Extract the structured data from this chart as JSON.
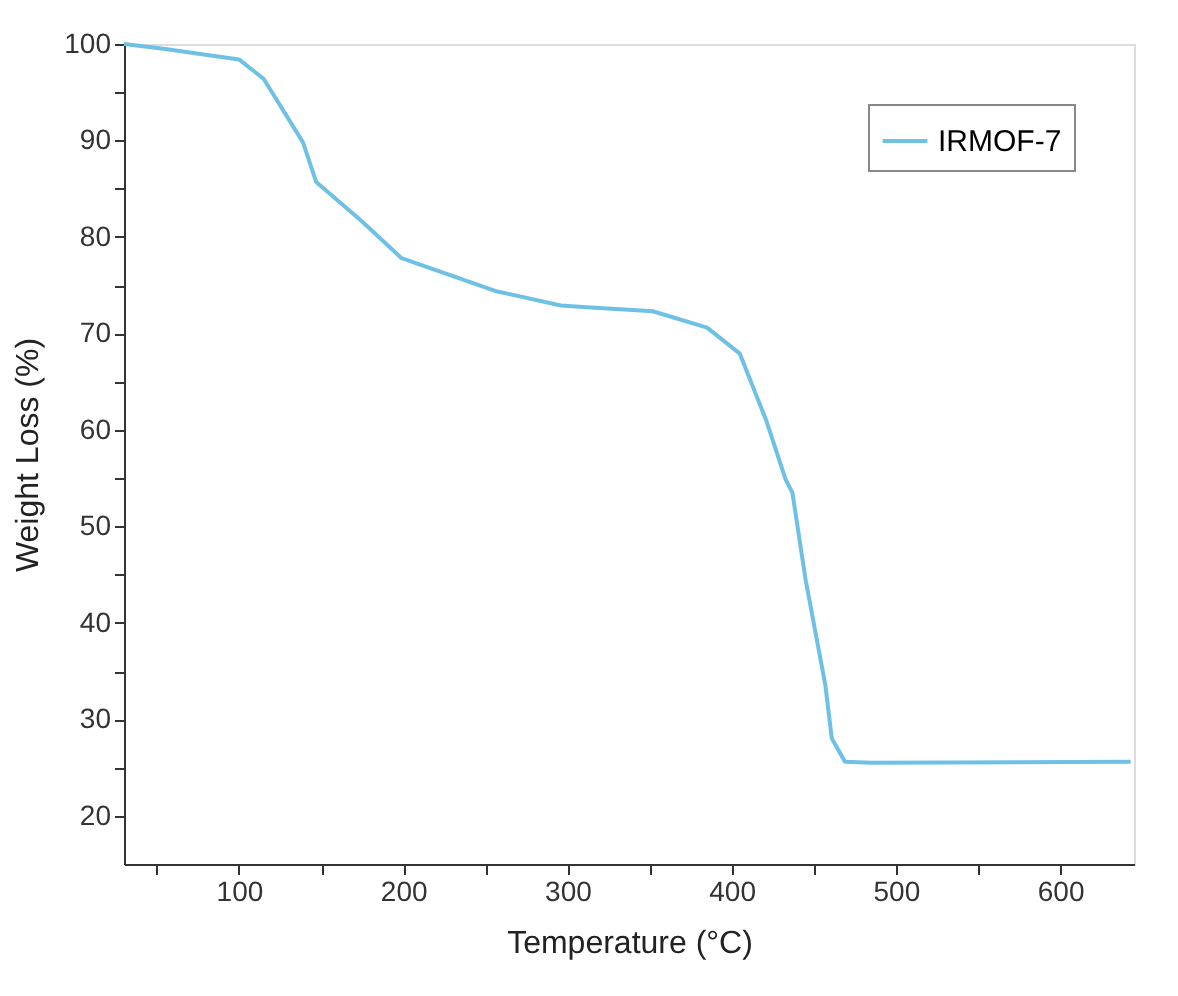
{
  "chart_data": {
    "type": "line",
    "xlabel": "Temperature (°C)",
    "ylabel": "Weight Loss (%)",
    "x": [
      30,
      54,
      100,
      115,
      139,
      147,
      175,
      199,
      256,
      296,
      312,
      352,
      385,
      405,
      421,
      433,
      437,
      445,
      457,
      461,
      469,
      485,
      643
    ],
    "series": [
      {
        "name": "IRMOF-7",
        "color": "#6ec1e4",
        "values": [
          100,
          99.5,
          98.4,
          96.4,
          89.8,
          85.7,
          81.6,
          77.8,
          74.4,
          72.9,
          72.7,
          72.3,
          70.6,
          67.9,
          61,
          54.8,
          53.5,
          44.5,
          33.6,
          28,
          25.6,
          25.5,
          25.6
        ]
      }
    ],
    "xlim": [
      30,
      645
    ],
    "ylim": [
      15,
      100
    ],
    "xticks": [
      {
        "value": 50,
        "label": null
      },
      100,
      {
        "value": 150,
        "label": null
      },
      200,
      {
        "value": 250,
        "label": null
      },
      300,
      {
        "value": 350,
        "label": null
      },
      400,
      {
        "value": 450,
        "label": null
      },
      500,
      {
        "value": 550,
        "label": null
      },
      600
    ],
    "yticks": [
      20,
      {
        "value": 25,
        "label": null
      },
      30,
      {
        "value": 35,
        "label": null
      },
      40,
      {
        "value": 45,
        "label": null
      },
      50,
      {
        "value": 55,
        "label": null
      },
      60,
      {
        "value": 65,
        "label": null
      },
      70,
      {
        "value": 75,
        "label": null
      },
      80,
      {
        "value": 85,
        "label": null
      },
      90,
      {
        "value": 95,
        "label": null
      },
      100
    ],
    "grid": false,
    "legend": "top right",
    "marker": "none",
    "line_style": "solid"
  }
}
